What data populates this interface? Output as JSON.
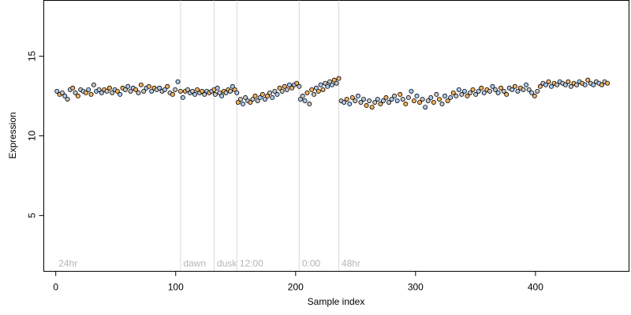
{
  "chart_data": {
    "type": "scatter",
    "xlabel": "Sample index",
    "ylabel": "Expression",
    "xlim": [
      -10,
      478
    ],
    "ylim": [
      1.5,
      18.5
    ],
    "x_ticks": [
      0,
      100,
      200,
      300,
      400
    ],
    "y_ticks": [
      5,
      10,
      15
    ],
    "grid": false,
    "colors": {
      "light_blue": "#a9c8f0",
      "orange": "#f2b15f",
      "gray": "#c4c4c4",
      "separator": "#d9d9d9",
      "separator_label": "#b5b5b5"
    },
    "separators": [
      {
        "x": 0,
        "label": "24hr",
        "line": false
      },
      {
        "x": 104,
        "label": "dawn",
        "line": true
      },
      {
        "x": 132,
        "label": "dusk",
        "line": true
      },
      {
        "x": 151,
        "label": "12:00",
        "line": true
      },
      {
        "x": 203,
        "label": "0:00",
        "line": true
      },
      {
        "x": 236,
        "label": "48hr",
        "line": true
      }
    ],
    "segments": [
      {
        "x_start": 1,
        "x_end": 104,
        "y_values": [
          12.8,
          12.6,
          12.7,
          12.5,
          12.3,
          12.9,
          13.0,
          12.7,
          12.5,
          12.9,
          12.8,
          12.7,
          12.9,
          12.6,
          13.2,
          12.8,
          12.9,
          12.7,
          12.9,
          12.8,
          13.0,
          12.7,
          12.9,
          12.8,
          12.6,
          13.0,
          12.9,
          13.1,
          12.8,
          13.0,
          12.9,
          12.7,
          13.2,
          12.8,
          13.0,
          13.1,
          12.8,
          13.0,
          12.9,
          13.0,
          12.8,
          12.9,
          13.1,
          12.7,
          12.6,
          12.9,
          13.4,
          12.8
        ]
      },
      {
        "x_start": 106,
        "x_end": 132,
        "y_values": [
          12.4,
          12.8,
          12.9,
          12.7,
          12.8,
          12.6,
          12.9,
          12.7,
          12.8,
          12.6,
          12.8,
          12.7,
          12.8,
          12.9
        ]
      },
      {
        "x_start": 133,
        "x_end": 151,
        "y_values": [
          12.6,
          13.0,
          12.7,
          12.5,
          12.8,
          12.7,
          12.9,
          12.8,
          13.1,
          12.9,
          12.7
        ]
      },
      {
        "x_start": 152,
        "x_end": 203,
        "y_values": [
          12.1,
          12.3,
          12.0,
          12.4,
          12.2,
          12.1,
          12.3,
          12.5,
          12.2,
          12.4,
          12.6,
          12.3,
          12.5,
          12.7,
          12.4,
          12.8,
          12.6,
          13.0,
          12.8,
          13.1,
          12.9,
          13.2,
          13.0,
          13.2,
          13.3,
          13.1
        ]
      },
      {
        "x_start": 204,
        "x_end": 236,
        "y_values": [
          12.3,
          12.5,
          12.2,
          12.7,
          12.0,
          12.9,
          12.6,
          13.0,
          12.8,
          13.2,
          12.9,
          13.3,
          13.1,
          13.4,
          13.2,
          13.5,
          13.3,
          13.6
        ]
      },
      {
        "x_start": 238,
        "x_end": 460,
        "y_values": [
          12.2,
          12.1,
          12.3,
          12.0,
          12.4,
          12.2,
          12.5,
          12.1,
          12.3,
          11.9,
          12.2,
          11.8,
          12.1,
          12.3,
          12.0,
          12.2,
          12.4,
          12.1,
          12.3,
          12.5,
          12.2,
          12.6,
          12.3,
          12.0,
          12.4,
          12.8,
          12.2,
          12.5,
          12.1,
          12.3,
          11.8,
          12.2,
          12.4,
          12.1,
          12.6,
          12.3,
          12.0,
          12.5,
          12.2,
          12.4,
          12.7,
          12.5,
          12.9,
          12.6,
          12.8,
          12.5,
          12.7,
          12.9,
          12.6,
          12.8,
          13.0,
          12.7,
          12.9,
          12.8,
          13.1,
          12.9,
          12.7,
          13.0,
          12.8,
          12.6,
          13.0,
          12.9,
          13.1,
          12.8,
          13.0,
          12.9,
          13.2,
          12.9,
          12.7,
          12.5,
          12.8,
          13.1,
          13.3,
          13.2,
          13.4,
          13.1,
          13.3,
          13.2,
          13.4,
          13.3,
          13.2,
          13.4,
          13.1,
          13.3,
          13.2,
          13.4,
          13.3,
          13.2,
          13.5,
          13.3,
          13.2,
          13.4,
          13.3,
          13.2,
          13.4,
          13.3
        ]
      }
    ]
  }
}
